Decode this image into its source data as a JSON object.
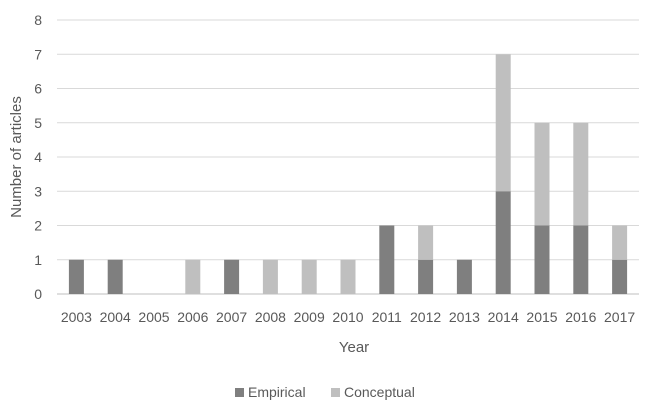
{
  "chart_data": {
    "type": "bar",
    "stacked": true,
    "title": "",
    "xlabel": "Year",
    "ylabel": "Number of articles",
    "ylim": [
      0,
      8
    ],
    "yticks": [
      0,
      1,
      2,
      3,
      4,
      5,
      6,
      7,
      8
    ],
    "grid": true,
    "legend_position": "bottom",
    "categories": [
      "2003",
      "2004",
      "2005",
      "2006",
      "2007",
      "2008",
      "2009",
      "2010",
      "2011",
      "2012",
      "2013",
      "2014",
      "2015",
      "2016",
      "2017"
    ],
    "series": [
      {
        "name": "Empirical",
        "color": "#7f7f7f",
        "values": [
          1,
          1,
          0,
          0,
          1,
          0,
          0,
          0,
          2,
          1,
          1,
          3,
          2,
          2,
          1
        ]
      },
      {
        "name": "Conceptual",
        "color": "#bfbfbf",
        "values": [
          0,
          0,
          0,
          1,
          0,
          1,
          1,
          1,
          0,
          1,
          0,
          4,
          3,
          3,
          1
        ]
      }
    ]
  }
}
